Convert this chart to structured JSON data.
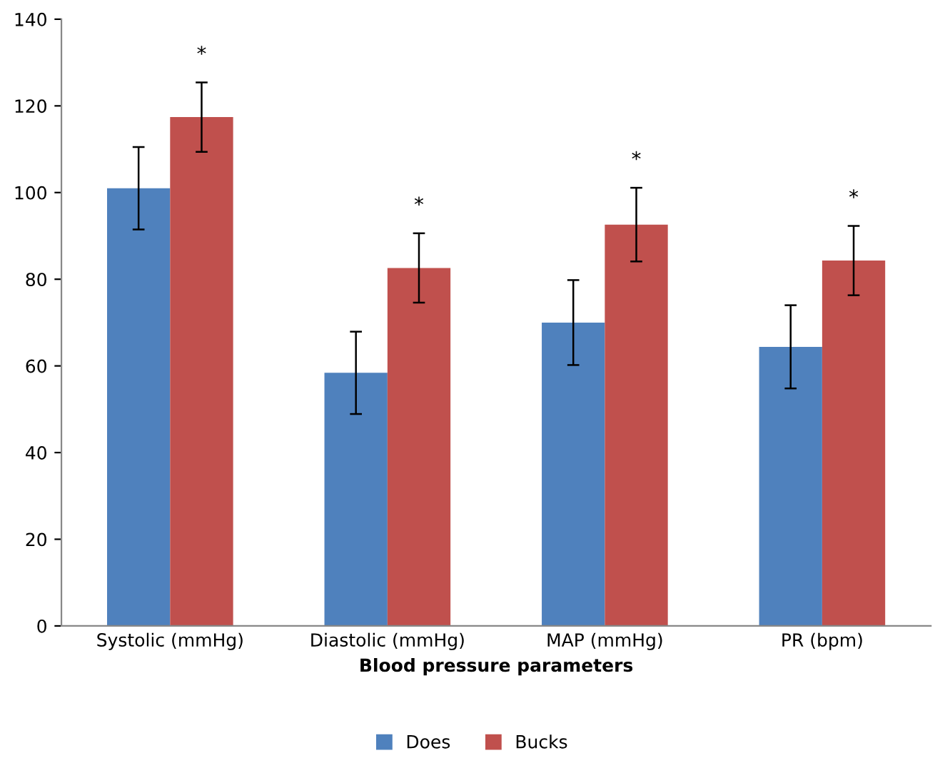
{
  "chart_data": {
    "type": "bar",
    "xlabel": "Blood pressure parameters",
    "categories": [
      "Systolic (mmHg)",
      "Diastolic (mmHg)",
      "MAP (mmHg)",
      "PR (bpm)"
    ],
    "series": [
      {
        "name": "Does",
        "color": "#4f81bd",
        "values": [
          101,
          58.4,
          70,
          64.4
        ],
        "errors": [
          9.5,
          9.5,
          9.8,
          9.6
        ]
      },
      {
        "name": "Bucks",
        "color": "#c0504d",
        "values": [
          117.4,
          82.6,
          92.6,
          84.3
        ],
        "errors": [
          8,
          8,
          8.5,
          8
        ]
      }
    ],
    "annotations": [
      "*",
      "*",
      "*",
      "*"
    ],
    "ylim": [
      0,
      140
    ],
    "yticks": [
      0,
      20,
      40,
      60,
      80,
      100,
      120,
      140
    ],
    "grid": false,
    "legend": "bottom"
  }
}
